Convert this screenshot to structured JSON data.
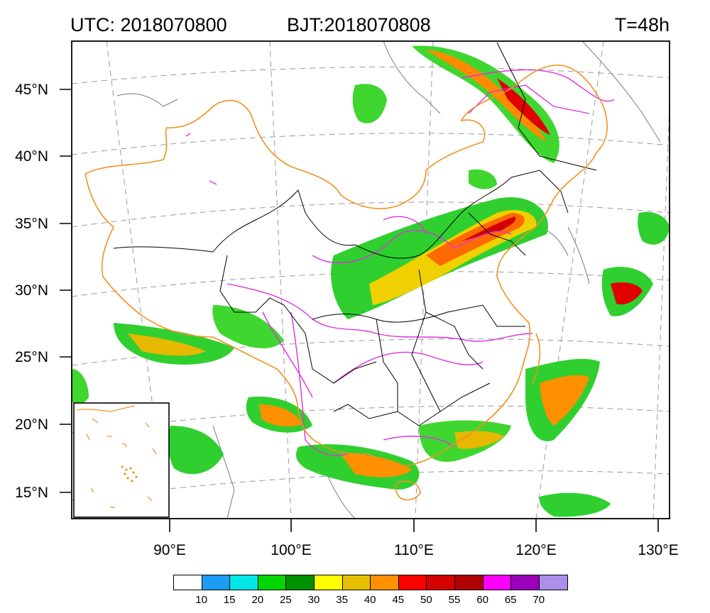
{
  "header": {
    "utc": "UTC: 2018070800",
    "bjt": "BJT:2018070808",
    "valid": "T=48h"
  },
  "lat_labels": [
    "45°N",
    "40°N",
    "35°N",
    "30°N",
    "25°N",
    "20°N",
    "15°N"
  ],
  "lon_labels": [
    "90°E",
    "100°E",
    "110°E",
    "120°E",
    "130°E"
  ],
  "colorbar": {
    "colors": [
      "#ffffff",
      "#1e9bf5",
      "#00e6e6",
      "#00d700",
      "#009100",
      "#ffff00",
      "#e6c000",
      "#ff9000",
      "#ff0000",
      "#d50000",
      "#b00000",
      "#ff00ff",
      "#9a00b9",
      "#ab8fe8"
    ],
    "labels": [
      "10",
      "15",
      "20",
      "25",
      "30",
      "35",
      "40",
      "45",
      "50",
      "55",
      "60",
      "65",
      "70"
    ]
  },
  "colors": {
    "national_border": "#f0921e",
    "river": "#e030e0",
    "province": "#000000",
    "country_outline": "#7a7a7a"
  }
}
